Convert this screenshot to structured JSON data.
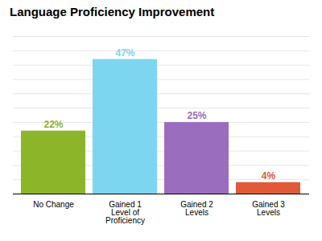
{
  "chart_data": {
    "type": "bar",
    "title": "Language Proficiency Improvement",
    "categories": [
      "No Change",
      "Gained 1\nLevel of\nProficiency",
      "Gained 2\nLevels",
      "Gained 3\nLevels"
    ],
    "values": [
      22,
      47,
      25,
      4
    ],
    "value_labels": [
      "22%",
      "47%",
      "25%",
      "4%"
    ],
    "data_labels": true,
    "colors": [
      "#8db52a",
      "#7dd6f0",
      "#9b6dbf",
      "#e05a3a"
    ],
    "ylim": [
      0,
      55
    ],
    "yticks": [
      0,
      5,
      10,
      15,
      20,
      25,
      30,
      35,
      40,
      45,
      50,
      55
    ],
    "grid": true,
    "tick_labels": "x"
  }
}
